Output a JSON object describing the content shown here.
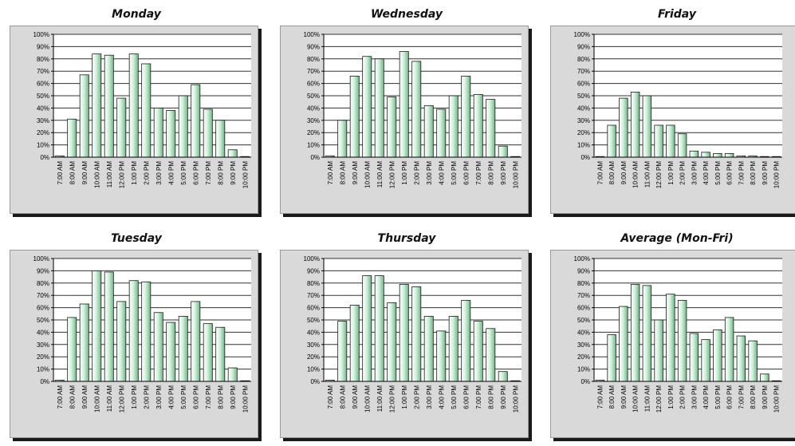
{
  "chart_data": [
    {
      "type": "bar",
      "title": "Monday",
      "categories": [
        "7:00 AM",
        "8:00 AM",
        "9:00 AM",
        "10:00 AM",
        "11:00 AM",
        "12:00 PM",
        "1:00 PM",
        "2:00 PM",
        "3:00 PM",
        "4:00 PM",
        "5:00 PM",
        "6:00 PM",
        "7:00 PM",
        "8:00 PM",
        "9:00 PM",
        "10:00 PM"
      ],
      "values": [
        1,
        31,
        67,
        84,
        83,
        48,
        84,
        76,
        40,
        38,
        50,
        59,
        39,
        30,
        6,
        0
      ],
      "ylim": [
        0,
        100
      ],
      "yticks": [
        "0%",
        "10%",
        "20%",
        "30%",
        "40%",
        "50%",
        "60%",
        "70%",
        "80%",
        "90%",
        "100%"
      ]
    },
    {
      "type": "bar",
      "title": "Wednesday",
      "categories": [
        "7:00 AM",
        "8:00 AM",
        "9:00 AM",
        "10:00 AM",
        "11:00 AM",
        "12:00 PM",
        "1:00 PM",
        "2:00 PM",
        "3:00 PM",
        "4:00 PM",
        "5:00 PM",
        "6:00 PM",
        "7:00 PM",
        "8:00 PM",
        "9:00 PM",
        "10:00 PM"
      ],
      "values": [
        1,
        30,
        66,
        82,
        80,
        49,
        86,
        78,
        42,
        39,
        50,
        66,
        51,
        47,
        9,
        0
      ],
      "ylim": [
        0,
        100
      ],
      "yticks": [
        "0%",
        "10%",
        "20%",
        "30%",
        "40%",
        "50%",
        "60%",
        "70%",
        "80%",
        "90%",
        "100%"
      ]
    },
    {
      "type": "bar",
      "title": "Friday",
      "categories": [
        "7:00 AM",
        "8:00 AM",
        "9:00 AM",
        "10:00 AM",
        "11:00 AM",
        "12:00 PM",
        "1:00 PM",
        "2:00 PM",
        "3:00 PM",
        "4:00 PM",
        "5:00 PM",
        "6:00 PM",
        "7:00 PM",
        "8:00 PM",
        "9:00 PM",
        "10:00 PM"
      ],
      "values": [
        0,
        26,
        48,
        53,
        50,
        26,
        26,
        19,
        5,
        4,
        3,
        3,
        1,
        1,
        0,
        0
      ],
      "ylim": [
        0,
        100
      ],
      "yticks": [
        "0%",
        "10%",
        "20%",
        "30%",
        "40%",
        "50%",
        "60%",
        "70%",
        "80%",
        "90%",
        "100%"
      ]
    },
    {
      "type": "bar",
      "title": "Tuesday",
      "categories": [
        "7:00 AM",
        "8:00 AM",
        "9:00 AM",
        "10:00 AM",
        "11:00 AM",
        "12:00 PM",
        "1:00 PM",
        "2:00 PM",
        "3:00 PM",
        "4:00 PM",
        "5:00 PM",
        "6:00 PM",
        "7:00 PM",
        "8:00 PM",
        "9:00 PM",
        "10:00 PM"
      ],
      "values": [
        1,
        52,
        63,
        90,
        89,
        65,
        82,
        81,
        56,
        48,
        53,
        65,
        47,
        44,
        11,
        0
      ],
      "ylim": [
        0,
        100
      ],
      "yticks": [
        "0%",
        "10%",
        "20%",
        "30%",
        "40%",
        "50%",
        "60%",
        "70%",
        "80%",
        "90%",
        "100%"
      ]
    },
    {
      "type": "bar",
      "title": "Thursday",
      "categories": [
        "7:00 AM",
        "8:00 AM",
        "9:00 AM",
        "10:00 AM",
        "11:00 AM",
        "12:00 PM",
        "1:00 PM",
        "2:00 PM",
        "3:00 PM",
        "4:00 PM",
        "5:00 PM",
        "6:00 PM",
        "7:00 PM",
        "8:00 PM",
        "9:00 PM",
        "10:00 PM"
      ],
      "values": [
        1,
        49,
        62,
        86,
        86,
        64,
        79,
        77,
        53,
        41,
        53,
        66,
        49,
        43,
        8,
        0
      ],
      "ylim": [
        0,
        100
      ],
      "yticks": [
        "0%",
        "10%",
        "20%",
        "30%",
        "40%",
        "50%",
        "60%",
        "70%",
        "80%",
        "90%",
        "100%"
      ]
    },
    {
      "type": "bar",
      "title": "Average (Mon-Fri)",
      "categories": [
        "7:00 AM",
        "8:00 AM",
        "9:00 AM",
        "10:00 AM",
        "11:00 AM",
        "12:00 PM",
        "1:00 PM",
        "2:00 PM",
        "3:00 PM",
        "4:00 PM",
        "5:00 PM",
        "6:00 PM",
        "7:00 PM",
        "8:00 PM",
        "9:00 PM",
        "10:00 PM"
      ],
      "values": [
        1,
        38,
        61,
        79,
        78,
        50,
        71,
        66,
        39,
        34,
        42,
        52,
        37,
        33,
        6,
        0
      ],
      "ylim": [
        0,
        100
      ],
      "yticks": [
        "0%",
        "10%",
        "20%",
        "30%",
        "40%",
        "50%",
        "60%",
        "70%",
        "80%",
        "90%",
        "100%"
      ]
    }
  ]
}
